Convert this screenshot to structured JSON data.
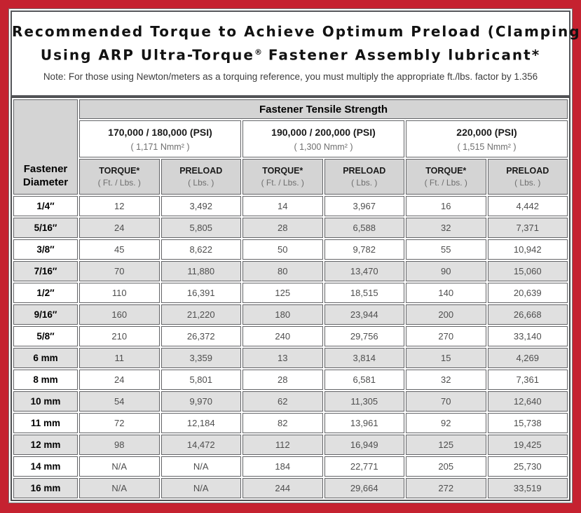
{
  "page": {
    "title_line1": "Recommended Torque to Achieve Optimum Preload (Clamping Force)",
    "title_line2_pre": "Using ARP Ultra-Torque",
    "title_line2_reg": "®",
    "title_line2_post": " Fastener Assembly lubricant*",
    "note": "Note: For those using Newton/meters as a torquing reference, you must multiply the appropriate ft./lbs. factor by 1.356"
  },
  "colors": {
    "frame_red": "#c52230",
    "border_gray": "#4e4f51",
    "header_gray": "#d4d4d4",
    "alt_row_gray": "#e0e0e0"
  },
  "table": {
    "corner_header": {
      "line1": "Fastener",
      "line2": "Diameter"
    },
    "tensile_header": "Fastener Tensile Strength",
    "strength_groups": [
      {
        "psi": "170,000 / 180,000 (PSI)",
        "nmm": "( 1,171 Nmm² )"
      },
      {
        "psi": "190,000 / 200,000 (PSI)",
        "nmm": "( 1,300 Nmm² )"
      },
      {
        "psi": "220,000 (PSI)",
        "nmm": "( 1,515 Nmm² )"
      }
    ],
    "sub_headers": {
      "torque_label": "TORQUE*",
      "torque_unit": "( Ft. / Lbs. )",
      "preload_label": "PRELOAD",
      "preload_unit": "( Lbs. )"
    },
    "rows": [
      {
        "diameter": "1/4″",
        "values": [
          "12",
          "3,492",
          "14",
          "3,967",
          "16",
          "4,442"
        ]
      },
      {
        "diameter": "5/16″",
        "values": [
          "24",
          "5,805",
          "28",
          "6,588",
          "32",
          "7,371"
        ]
      },
      {
        "diameter": "3/8″",
        "values": [
          "45",
          "8,622",
          "50",
          "9,782",
          "55",
          "10,942"
        ]
      },
      {
        "diameter": "7/16″",
        "values": [
          "70",
          "11,880",
          "80",
          "13,470",
          "90",
          "15,060"
        ]
      },
      {
        "diameter": "1/2″",
        "values": [
          "110",
          "16,391",
          "125",
          "18,515",
          "140",
          "20,639"
        ]
      },
      {
        "diameter": "9/16″",
        "values": [
          "160",
          "21,220",
          "180",
          "23,944",
          "200",
          "26,668"
        ]
      },
      {
        "diameter": "5/8″",
        "values": [
          "210",
          "26,372",
          "240",
          "29,756",
          "270",
          "33,140"
        ]
      },
      {
        "diameter": "6 mm",
        "values": [
          "11",
          "3,359",
          "13",
          "3,814",
          "15",
          "4,269"
        ]
      },
      {
        "diameter": "8 mm",
        "values": [
          "24",
          "5,801",
          "28",
          "6,581",
          "32",
          "7,361"
        ]
      },
      {
        "diameter": "10 mm",
        "values": [
          "54",
          "9,970",
          "62",
          "11,305",
          "70",
          "12,640"
        ]
      },
      {
        "diameter": "11 mm",
        "values": [
          "72",
          "12,184",
          "82",
          "13,961",
          "92",
          "15,738"
        ]
      },
      {
        "diameter": "12 mm",
        "values": [
          "98",
          "14,472",
          "112",
          "16,949",
          "125",
          "19,425"
        ]
      },
      {
        "diameter": "14 mm",
        "values": [
          "N/A",
          "N/A",
          "184",
          "22,771",
          "205",
          "25,730"
        ]
      },
      {
        "diameter": "16 mm",
        "values": [
          "N/A",
          "N/A",
          "244",
          "29,664",
          "272",
          "33,519"
        ]
      }
    ]
  }
}
